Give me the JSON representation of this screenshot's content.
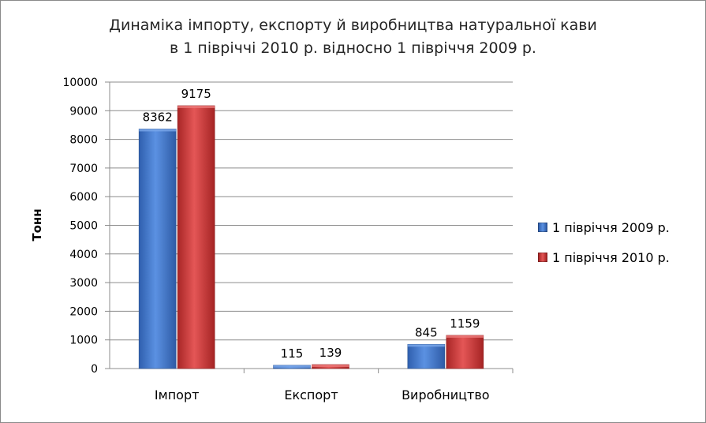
{
  "chart_data": {
    "type": "bar",
    "title_lines": [
      "Динаміка імпорту, експорту й виробництва натуральної кави",
      "в 1 півріччі 2010 р. відносно 1 півріччя 2009 р."
    ],
    "xlabel": "",
    "ylabel": "Тонн",
    "ylim": [
      0,
      10000
    ],
    "yticks": [
      0,
      1000,
      2000,
      3000,
      4000,
      5000,
      6000,
      7000,
      8000,
      9000,
      10000
    ],
    "grid": true,
    "legend_position": "right",
    "categories": [
      "Імпорт",
      "Експорт",
      "Виробництво"
    ],
    "series": [
      {
        "name": "1 півріччя 2009 р.",
        "color": "#4a7fd0",
        "values": [
          8362,
          115,
          845
        ]
      },
      {
        "name": "1 півріччя 2010 р.",
        "color": "#d23b3b",
        "values": [
          9175,
          139,
          1159
        ]
      }
    ]
  }
}
